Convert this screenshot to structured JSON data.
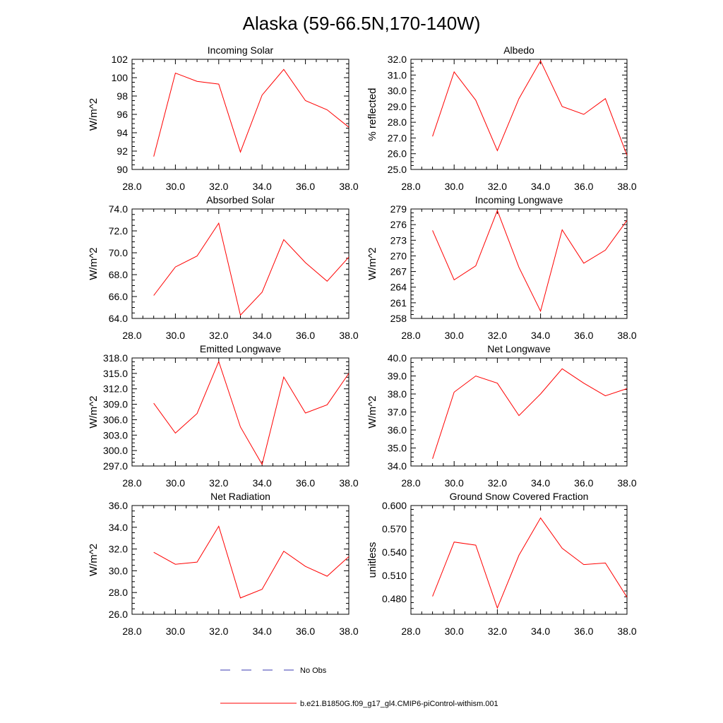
{
  "title": "Alaska (59-66.5N,170-140W)",
  "colors": {
    "model_line": "#ff0000",
    "obs_line": "#3a3ab0",
    "axis": "#000000"
  },
  "legend": {
    "obs_label": "No Obs",
    "model_label": "b.e21.B1850G.f09_g17_gl4.CMIP6-piControl-withism.001"
  },
  "chart_data": [
    {
      "type": "line",
      "title": "Incoming Solar",
      "ylabel": "W/m^2",
      "xlim": [
        28,
        38
      ],
      "ylim": [
        90,
        102
      ],
      "xticks": [
        28,
        30,
        32,
        34,
        36,
        38
      ],
      "xtick_labels": [
        "28.0",
        "30.0",
        "32.0",
        "34.0",
        "36.0",
        "38.0"
      ],
      "yticks": [
        90,
        92,
        94,
        96,
        98,
        100,
        102
      ],
      "ytick_labels": [
        "90",
        "92",
        "94",
        "96",
        "98",
        "100",
        "102"
      ],
      "x": [
        29,
        30,
        31,
        32,
        33,
        34,
        35,
        36,
        37,
        38
      ],
      "series": [
        {
          "values": [
            91.4,
            100.5,
            99.6,
            99.3,
            91.9,
            98.1,
            100.9,
            97.5,
            96.5,
            94.6
          ]
        }
      ]
    },
    {
      "type": "line",
      "title": "Albedo",
      "ylabel": "% reflected",
      "xlim": [
        28,
        38
      ],
      "ylim": [
        25,
        32
      ],
      "xticks": [
        28,
        30,
        32,
        34,
        36,
        38
      ],
      "xtick_labels": [
        "28.0",
        "30.0",
        "32.0",
        "34.0",
        "36.0",
        "38.0"
      ],
      "yticks": [
        25,
        26,
        27,
        28,
        29,
        30,
        31,
        32
      ],
      "ytick_labels": [
        "25.0",
        "26.0",
        "27.0",
        "28.0",
        "29.0",
        "30.0",
        "31.0",
        "32.0"
      ],
      "x": [
        29,
        30,
        31,
        32,
        33,
        34,
        35,
        36,
        37,
        38
      ],
      "series": [
        {
          "values": [
            27.1,
            31.2,
            29.4,
            26.2,
            29.5,
            31.9,
            29.0,
            28.5,
            29.5,
            25.9
          ]
        }
      ]
    },
    {
      "type": "line",
      "title": "Absorbed Solar",
      "ylabel": "W/m^2",
      "xlim": [
        28,
        38
      ],
      "ylim": [
        64,
        74
      ],
      "xticks": [
        28,
        30,
        32,
        34,
        36,
        38
      ],
      "xtick_labels": [
        "28.0",
        "30.0",
        "32.0",
        "34.0",
        "36.0",
        "38.0"
      ],
      "yticks": [
        64,
        66,
        68,
        70,
        72,
        74
      ],
      "ytick_labels": [
        "64.0",
        "66.0",
        "68.0",
        "70.0",
        "72.0",
        "74.0"
      ],
      "x": [
        29,
        30,
        31,
        32,
        33,
        34,
        35,
        36,
        37,
        38
      ],
      "series": [
        {
          "values": [
            66.1,
            68.7,
            69.7,
            72.7,
            64.3,
            66.4,
            71.2,
            69.1,
            67.4,
            69.6
          ]
        }
      ]
    },
    {
      "type": "line",
      "title": "Incoming Longwave",
      "ylabel": "W/m^2",
      "xlim": [
        28,
        38
      ],
      "ylim": [
        258,
        279
      ],
      "xticks": [
        28,
        30,
        32,
        34,
        36,
        38
      ],
      "xtick_labels": [
        "28.0",
        "30.0",
        "32.0",
        "34.0",
        "36.0",
        "38.0"
      ],
      "yticks": [
        258,
        261,
        264,
        267,
        270,
        273,
        276,
        279
      ],
      "ytick_labels": [
        "258",
        "261",
        "264",
        "267",
        "270",
        "273",
        "276",
        "279"
      ],
      "x": [
        29,
        30,
        31,
        32,
        33,
        34,
        35,
        36,
        37,
        38
      ],
      "series": [
        {
          "values": [
            274.9,
            265.4,
            268.1,
            278.7,
            267.8,
            259.4,
            275.0,
            268.6,
            271.1,
            276.8
          ]
        }
      ]
    },
    {
      "type": "line",
      "title": "Emitted Longwave",
      "ylabel": "W/m^2",
      "xlim": [
        28,
        38
      ],
      "ylim": [
        297,
        318
      ],
      "xticks": [
        28,
        30,
        32,
        34,
        36,
        38
      ],
      "xtick_labels": [
        "28.0",
        "30.0",
        "32.0",
        "34.0",
        "36.0",
        "38.0"
      ],
      "yticks": [
        297,
        300,
        303,
        306,
        309,
        312,
        315,
        318
      ],
      "ytick_labels": [
        "297.0",
        "300.0",
        "303.0",
        "306.0",
        "309.0",
        "312.0",
        "315.0",
        "318.0"
      ],
      "x": [
        29,
        30,
        31,
        32,
        33,
        34,
        35,
        36,
        37,
        38
      ],
      "series": [
        {
          "values": [
            309.2,
            303.4,
            307.2,
            317.3,
            304.6,
            297.3,
            314.3,
            307.3,
            308.9,
            315.0
          ]
        }
      ]
    },
    {
      "type": "line",
      "title": "Net Longwave",
      "ylabel": "W/m^2",
      "xlim": [
        28,
        38
      ],
      "ylim": [
        34,
        40
      ],
      "xticks": [
        28,
        30,
        32,
        34,
        36,
        38
      ],
      "xtick_labels": [
        "28.0",
        "30.0",
        "32.0",
        "34.0",
        "36.0",
        "38.0"
      ],
      "yticks": [
        34,
        35,
        36,
        37,
        38,
        39,
        40
      ],
      "ytick_labels": [
        "34.0",
        "35.0",
        "36.0",
        "37.0",
        "38.0",
        "39.0",
        "40.0"
      ],
      "x": [
        29,
        30,
        31,
        32,
        33,
        34,
        35,
        36,
        37,
        38
      ],
      "series": [
        {
          "values": [
            34.4,
            38.1,
            39.0,
            38.6,
            36.8,
            38.0,
            39.4,
            38.6,
            37.9,
            38.3
          ]
        }
      ]
    },
    {
      "type": "line",
      "title": "Net Radiation",
      "ylabel": "W/m^2",
      "xlim": [
        28,
        38
      ],
      "ylim": [
        26,
        36
      ],
      "xticks": [
        28,
        30,
        32,
        34,
        36,
        38
      ],
      "xtick_labels": [
        "28.0",
        "30.0",
        "32.0",
        "34.0",
        "36.0",
        "38.0"
      ],
      "yticks": [
        26,
        28,
        30,
        32,
        34,
        36
      ],
      "ytick_labels": [
        "26.0",
        "28.0",
        "30.0",
        "32.0",
        "34.0",
        "36.0"
      ],
      "x": [
        29,
        30,
        31,
        32,
        33,
        34,
        35,
        36,
        37,
        38
      ],
      "series": [
        {
          "values": [
            31.7,
            30.6,
            30.8,
            34.1,
            27.5,
            28.3,
            31.8,
            30.4,
            29.5,
            31.3
          ]
        }
      ]
    },
    {
      "type": "line",
      "title": "Ground Snow Covered Fraction",
      "ylabel": "unitless",
      "xlim": [
        28,
        38
      ],
      "ylim": [
        0.46,
        0.6
      ],
      "xticks": [
        28,
        30,
        32,
        34,
        36,
        38
      ],
      "xtick_labels": [
        "28.0",
        "30.0",
        "32.0",
        "34.0",
        "36.0",
        "38.0"
      ],
      "yticks": [
        0.48,
        0.51,
        0.54,
        0.57,
        0.6
      ],
      "ytick_labels": [
        "0.480",
        "0.510",
        "0.540",
        "0.570",
        "0.600"
      ],
      "x": [
        29,
        30,
        31,
        32,
        33,
        34,
        35,
        36,
        37,
        38
      ],
      "series": [
        {
          "values": [
            0.483,
            0.553,
            0.549,
            0.468,
            0.536,
            0.584,
            0.545,
            0.524,
            0.526,
            0.482
          ]
        }
      ]
    }
  ]
}
